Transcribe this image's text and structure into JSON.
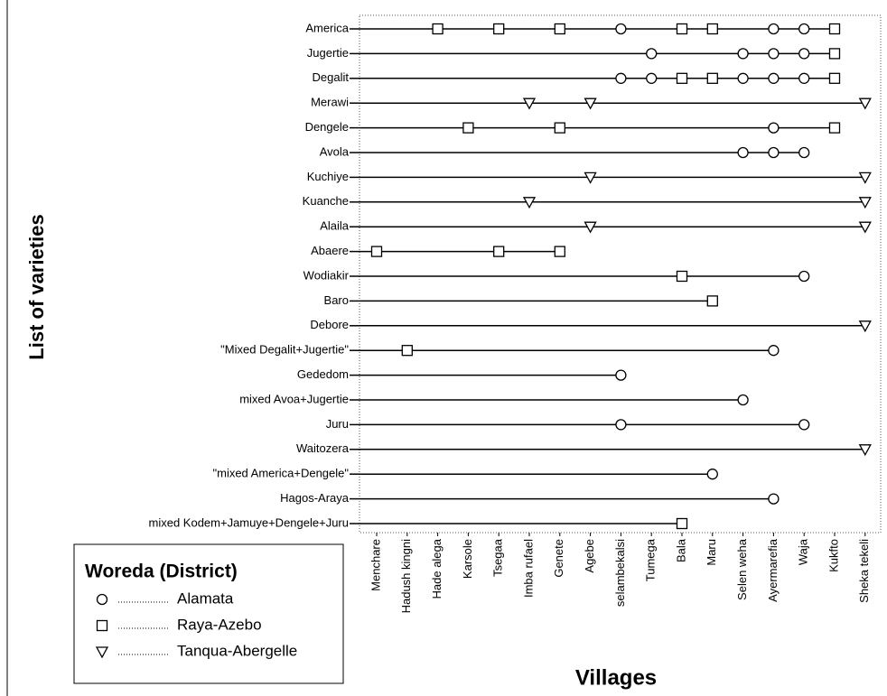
{
  "chart_data": {
    "type": "dot",
    "x_label": "Villages",
    "y_label": "List of varieties",
    "categories": [
      "Menchare",
      "Hadush kingni",
      "Hade alega",
      "Karsole",
      "Tsegaa",
      "Imba rufael",
      "Genete",
      "Agebe",
      "selambekalsi",
      "Tumega",
      "Bala",
      "Maru",
      "Selen weha",
      "Ayermarefia",
      "Waja",
      "Kukfto",
      "Sheka tekeli"
    ],
    "y_categories": [
      "America",
      "Jugertie",
      "Degalit",
      "Merawi",
      "Dengele",
      "Avola",
      "Kuchiye",
      "Kuanche",
      "Alaila",
      "Abaere",
      "Wodiakir",
      "Baro",
      "Debore",
      "\"Mixed Degalit+Jugertie\"",
      "Gededom",
      "mixed Avoa+Jugertie",
      "Juru",
      "Waitozera",
      "\"mixed America+Dengele\"",
      "Hagos-Araya",
      "mixed Kodem+Jamuye+Dengele+Juru"
    ],
    "legend_title": "Woreda (District)",
    "legend": "bottom-left",
    "series": [
      {
        "name": "Alamata",
        "marker": "circle",
        "color": "#000000",
        "x": [
          "selambekalsi",
          "Ayermarefia",
          "Waja",
          "Tumega",
          "Selen weha",
          "Ayermarefia",
          "Waja",
          "selambekalsi",
          "Tumega",
          "Selen weha",
          "Ayermarefia",
          "Waja",
          "Ayermarefia",
          "Selen weha",
          "Ayermarefia",
          "Waja",
          "Waja",
          "Ayermarefia",
          "selambekalsi",
          "Selen weha",
          "selambekalsi",
          "Waja",
          "Maru",
          "Ayermarefia"
        ],
        "y": [
          "America",
          "America",
          "America",
          "Jugertie",
          "Jugertie",
          "Jugertie",
          "Jugertie",
          "Degalit",
          "Degalit",
          "Degalit",
          "Degalit",
          "Degalit",
          "Dengele",
          "Avola",
          "Avola",
          "Avola",
          "Wodiakir",
          "\"Mixed Degalit+Jugertie\"",
          "Gededom",
          "mixed Avoa+Jugertie",
          "Juru",
          "Juru",
          "\"mixed America+Dengele\"",
          "Hagos-Araya"
        ]
      },
      {
        "name": "Raya-Azebo",
        "marker": "square",
        "color": "#000000",
        "x": [
          "Hade alega",
          "Tsegaa",
          "Genete",
          "Bala",
          "Maru",
          "Kukfto",
          "Kukfto",
          "Bala",
          "Maru",
          "Kukfto",
          "Karsole",
          "Genete",
          "Kukfto",
          "Menchare",
          "Tsegaa",
          "Genete",
          "Bala",
          "Maru",
          "Hadush kingni",
          "Bala"
        ],
        "y": [
          "America",
          "America",
          "America",
          "America",
          "America",
          "America",
          "Jugertie",
          "Degalit",
          "Degalit",
          "Degalit",
          "Dengele",
          "Dengele",
          "Dengele",
          "Abaere",
          "Abaere",
          "Abaere",
          "Wodiakir",
          "Baro",
          "\"Mixed Degalit+Jugertie\"",
          "mixed Kodem+Jamuye+Dengele+Juru"
        ]
      },
      {
        "name": "Tanqua-Abergelle",
        "marker": "triangle-down",
        "color": "#000000",
        "x": [
          "Imba rufael",
          "Agebe",
          "Sheka tekeli",
          "Agebe",
          "Sheka tekeli",
          "Imba rufael",
          "Sheka tekeli",
          "Agebe",
          "Sheka tekeli",
          "Sheka tekeli",
          "Sheka tekeli"
        ],
        "y": [
          "Merawi",
          "Merawi",
          "Merawi",
          "Kuchiye",
          "Kuchiye",
          "Kuanche",
          "Kuanche",
          "Alaila",
          "Alaila",
          "Debore",
          "Waitozera"
        ]
      }
    ]
  }
}
